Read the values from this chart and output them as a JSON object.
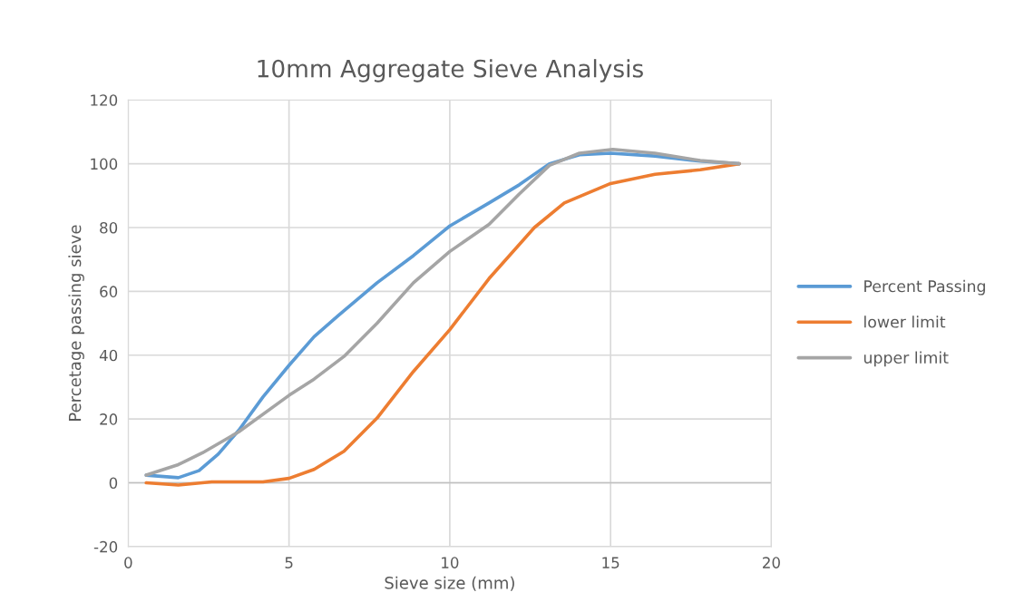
{
  "chart_data": {
    "type": "line",
    "title": "10mm Aggregate Sieve Analysis",
    "xlabel": "Sieve size (mm)",
    "ylabel": "Percetage passing sieve",
    "xlim": [
      0,
      20
    ],
    "xticks": [
      0,
      5,
      10,
      15,
      20
    ],
    "ylim": [
      -20,
      120
    ],
    "yticks": [
      -20,
      0,
      20,
      40,
      60,
      80,
      100,
      120
    ],
    "grid": true,
    "legend": "right",
    "marker": "none",
    "line_style": "solid",
    "series": [
      {
        "name": "Percent Passing",
        "color": "#5b9bd5",
        "x": [
          0.56,
          1.56,
          2.2,
          2.8,
          3.44,
          4.19,
          5,
          5.78,
          6.53,
          7.74,
          8.87,
          10,
          11.22,
          12.16,
          13.1,
          14.03,
          15,
          16.38,
          17.79,
          19
        ],
        "values": [
          2.4,
          1.6,
          3.8,
          9,
          16.5,
          26.9,
          36.8,
          45.8,
          52.4,
          62.7,
          71.2,
          80.5,
          87.7,
          93.4,
          100,
          102.8,
          103.3,
          102.4,
          100.8,
          100
        ]
      },
      {
        "name": "lower limit",
        "color": "#ed7d31",
        "x": [
          0.56,
          1.56,
          2.6,
          4.19,
          5,
          5.78,
          6.71,
          7.74,
          8.87,
          10,
          11.22,
          12.63,
          13.56,
          15,
          16.38,
          17.79,
          19
        ],
        "values": [
          0,
          -0.7,
          0.3,
          0.3,
          1.4,
          4.2,
          9.9,
          20.3,
          34.9,
          48,
          64,
          80,
          87.7,
          93.8,
          96.7,
          98.1,
          100
        ]
      },
      {
        "name": "upper limit",
        "color": "#a5a5a5",
        "x": [
          0.56,
          1.56,
          2.31,
          3.44,
          5,
          5.78,
          6.71,
          7.74,
          8.87,
          10,
          11.22,
          12.16,
          13.1,
          14.03,
          15.07,
          16.38,
          17.79,
          19
        ],
        "values": [
          2.4,
          5.7,
          9.4,
          16,
          27.4,
          32.5,
          39.6,
          50,
          62.7,
          72.5,
          81,
          90.5,
          99.5,
          103.3,
          104.5,
          103.3,
          101,
          100
        ]
      }
    ]
  }
}
